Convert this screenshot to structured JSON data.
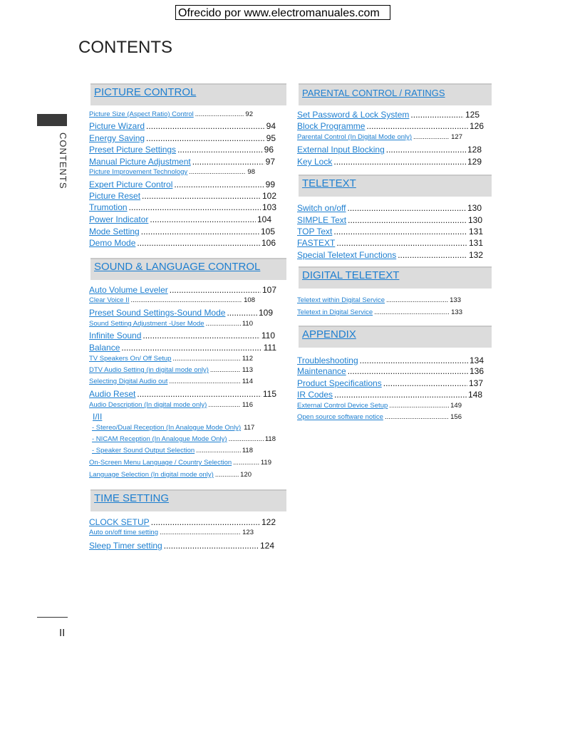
{
  "banner": "Ofrecido por www.electromanuales.com",
  "title": "CONTENTS",
  "side_tab": "CONTENTS",
  "page_number": "II",
  "left": [
    {
      "title": "PICTURE CONTROL",
      "entries": [
        {
          "text": "Picture Size (Aspect Ratio) Control",
          "page": "92"
        },
        {
          "text": "Picture Wizard",
          "page": "94"
        },
        {
          "text": "Energy Saving",
          "page": "95"
        },
        {
          "text": "Preset Picture Settings",
          "page": "96"
        },
        {
          "text": "Manual Picture Adjustment",
          "page": "97"
        },
        {
          "text": "Picture Improvement Technology",
          "page": "98"
        },
        {
          "text": "Expert Picture Control",
          "page": "99"
        },
        {
          "text": "Picture Reset",
          "page": "102"
        },
        {
          "text": "Trumotion",
          "page": "103"
        },
        {
          "text": "Power Indicator",
          "page": "104"
        },
        {
          "text": "Mode Setting",
          "page": "105"
        },
        {
          "text": "Demo Mode",
          "page": "106"
        }
      ]
    },
    {
      "title": "SOUND & LANGUAGE CONTROL",
      "entries": [
        {
          "text": "Auto Volume Leveler",
          "page": "107"
        },
        {
          "text": "Clear Voice II",
          "page": "108"
        },
        {
          "text": "Preset Sound Settings-Sound Mode",
          "page": "109"
        },
        {
          "text": "Sound Setting Adjustment -User Mode",
          "page": "110"
        },
        {
          "text": "Infinite Sound",
          "page": "110"
        },
        {
          "text": "Balance",
          "page": "111"
        },
        {
          "text": "TV Speakers On/ Off Setup",
          "page": "112"
        },
        {
          "text": "DTV Audio Setting (in digital mode only)",
          "page": "113"
        },
        {
          "text": "Selecting Digital Audio out",
          "page": "114"
        },
        {
          "text": "Audio Reset",
          "page": "115"
        },
        {
          "text": "Audio Description (In digital mode only)",
          "page": "116"
        },
        {
          "text": "I/II",
          "page": ""
        },
        {
          "text": "- Stereo/Dual Reception (In Analogue Mode Only)",
          "page": "117"
        },
        {
          "text": "- NICAM Reception (In Analogue Mode Only)",
          "page": "118"
        },
        {
          "text": "- Speaker Sound Output Selection",
          "page": "118"
        },
        {
          "text": "On-Screen Menu Language / Country Selection",
          "page": "119"
        },
        {
          "text": "Language Selection (In digital mode only)",
          "page": "120"
        }
      ]
    },
    {
      "title": "TIME SETTING",
      "entries": [
        {
          "text": "CLOCK SETUP",
          "page": "122"
        },
        {
          "text": "Auto on/off time setting",
          "page": "123"
        },
        {
          "text": "Sleep Timer setting",
          "page": "124"
        }
      ]
    }
  ],
  "right": [
    {
      "title": "PARENTAL CONTROL / RATINGS",
      "entries": [
        {
          "text": "Set Password & Lock System",
          "page": "125"
        },
        {
          "text": "Block Programme",
          "page": "126"
        },
        {
          "text": "Parental Control (In Digital Mode only)",
          "page": "127"
        },
        {
          "text": "External Input Blocking",
          "page": "128"
        },
        {
          "text": "Key Lock",
          "page": "129"
        }
      ]
    },
    {
      "title": "TELETEXT",
      "entries": [
        {
          "text": "Switch on/off",
          "page": "130"
        },
        {
          "text": "SIMPLE Text",
          "page": "130"
        },
        {
          "text": "TOP Text",
          "page": "131"
        },
        {
          "text": "FASTEXT",
          "page": "131"
        },
        {
          "text": "Special Teletext Functions",
          "page": "132"
        }
      ]
    },
    {
      "title": "DIGITAL TELETEXT",
      "entries": [
        {
          "text": "Teletext within Digital Service",
          "page": "133"
        },
        {
          "text": "Teletext in Digital Service",
          "page": "133"
        }
      ]
    },
    {
      "title": "APPENDIX",
      "entries": [
        {
          "text": "Troubleshooting",
          "page": "134"
        },
        {
          "text": "Maintenance",
          "page": "136"
        },
        {
          "text": "Product Specifications",
          "page": "137"
        },
        {
          "text": "IR Codes",
          "page": "148"
        },
        {
          "text": "External Control Device Setup",
          "page": "149"
        },
        {
          "text": "Open source software notice",
          "page": "156"
        }
      ]
    }
  ],
  "colors": {
    "link": "#1e7fd0",
    "header_bg": "#dcdcdc"
  }
}
